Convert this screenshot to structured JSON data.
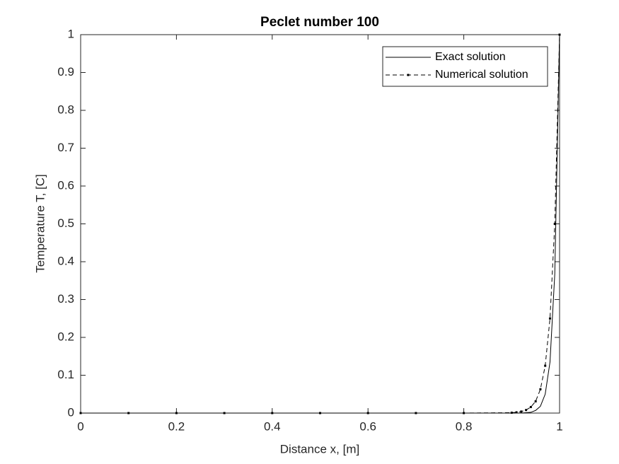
{
  "chart_data": {
    "type": "line",
    "title": "Peclet number 100",
    "xlabel": "Distance x, [m]",
    "ylabel": "Temperature T, [C]",
    "xlim": [
      0,
      1
    ],
    "xticks": [
      0,
      0.2,
      0.4,
      0.6,
      0.8,
      1
    ],
    "ylim": [
      0,
      1
    ],
    "yticks": [
      0,
      0.1,
      0.2,
      0.3,
      0.4,
      0.5,
      0.6,
      0.7,
      0.8,
      0.9,
      1
    ],
    "legend": "upper right",
    "series": [
      {
        "name": "Exact solution",
        "color": "#000000",
        "dash": "solid",
        "marker": false,
        "x": [
          0,
          0.1,
          0.2,
          0.3,
          0.4,
          0.5,
          0.6,
          0.7,
          0.8,
          0.9,
          0.92,
          0.94,
          0.95,
          0.96,
          0.97,
          0.98,
          0.99,
          1
        ],
        "values": [
          0,
          0,
          0,
          0,
          0,
          0,
          0,
          0,
          0,
          0,
          0,
          0.002,
          0.007,
          0.018,
          0.05,
          0.135,
          0.368,
          1
        ]
      },
      {
        "name": "Numerical solution",
        "color": "#000000",
        "dash": "dashed",
        "marker": true,
        "x": [
          0,
          0.1,
          0.2,
          0.3,
          0.4,
          0.5,
          0.6,
          0.7,
          0.8,
          0.9,
          0.91,
          0.92,
          0.93,
          0.94,
          0.95,
          0.96,
          0.97,
          0.98,
          0.99,
          1
        ],
        "values": [
          0,
          0,
          0,
          0,
          0,
          0,
          0,
          0,
          0,
          0.001,
          0.002,
          0.004,
          0.008,
          0.016,
          0.031,
          0.063,
          0.125,
          0.25,
          0.5,
          1
        ]
      }
    ]
  }
}
